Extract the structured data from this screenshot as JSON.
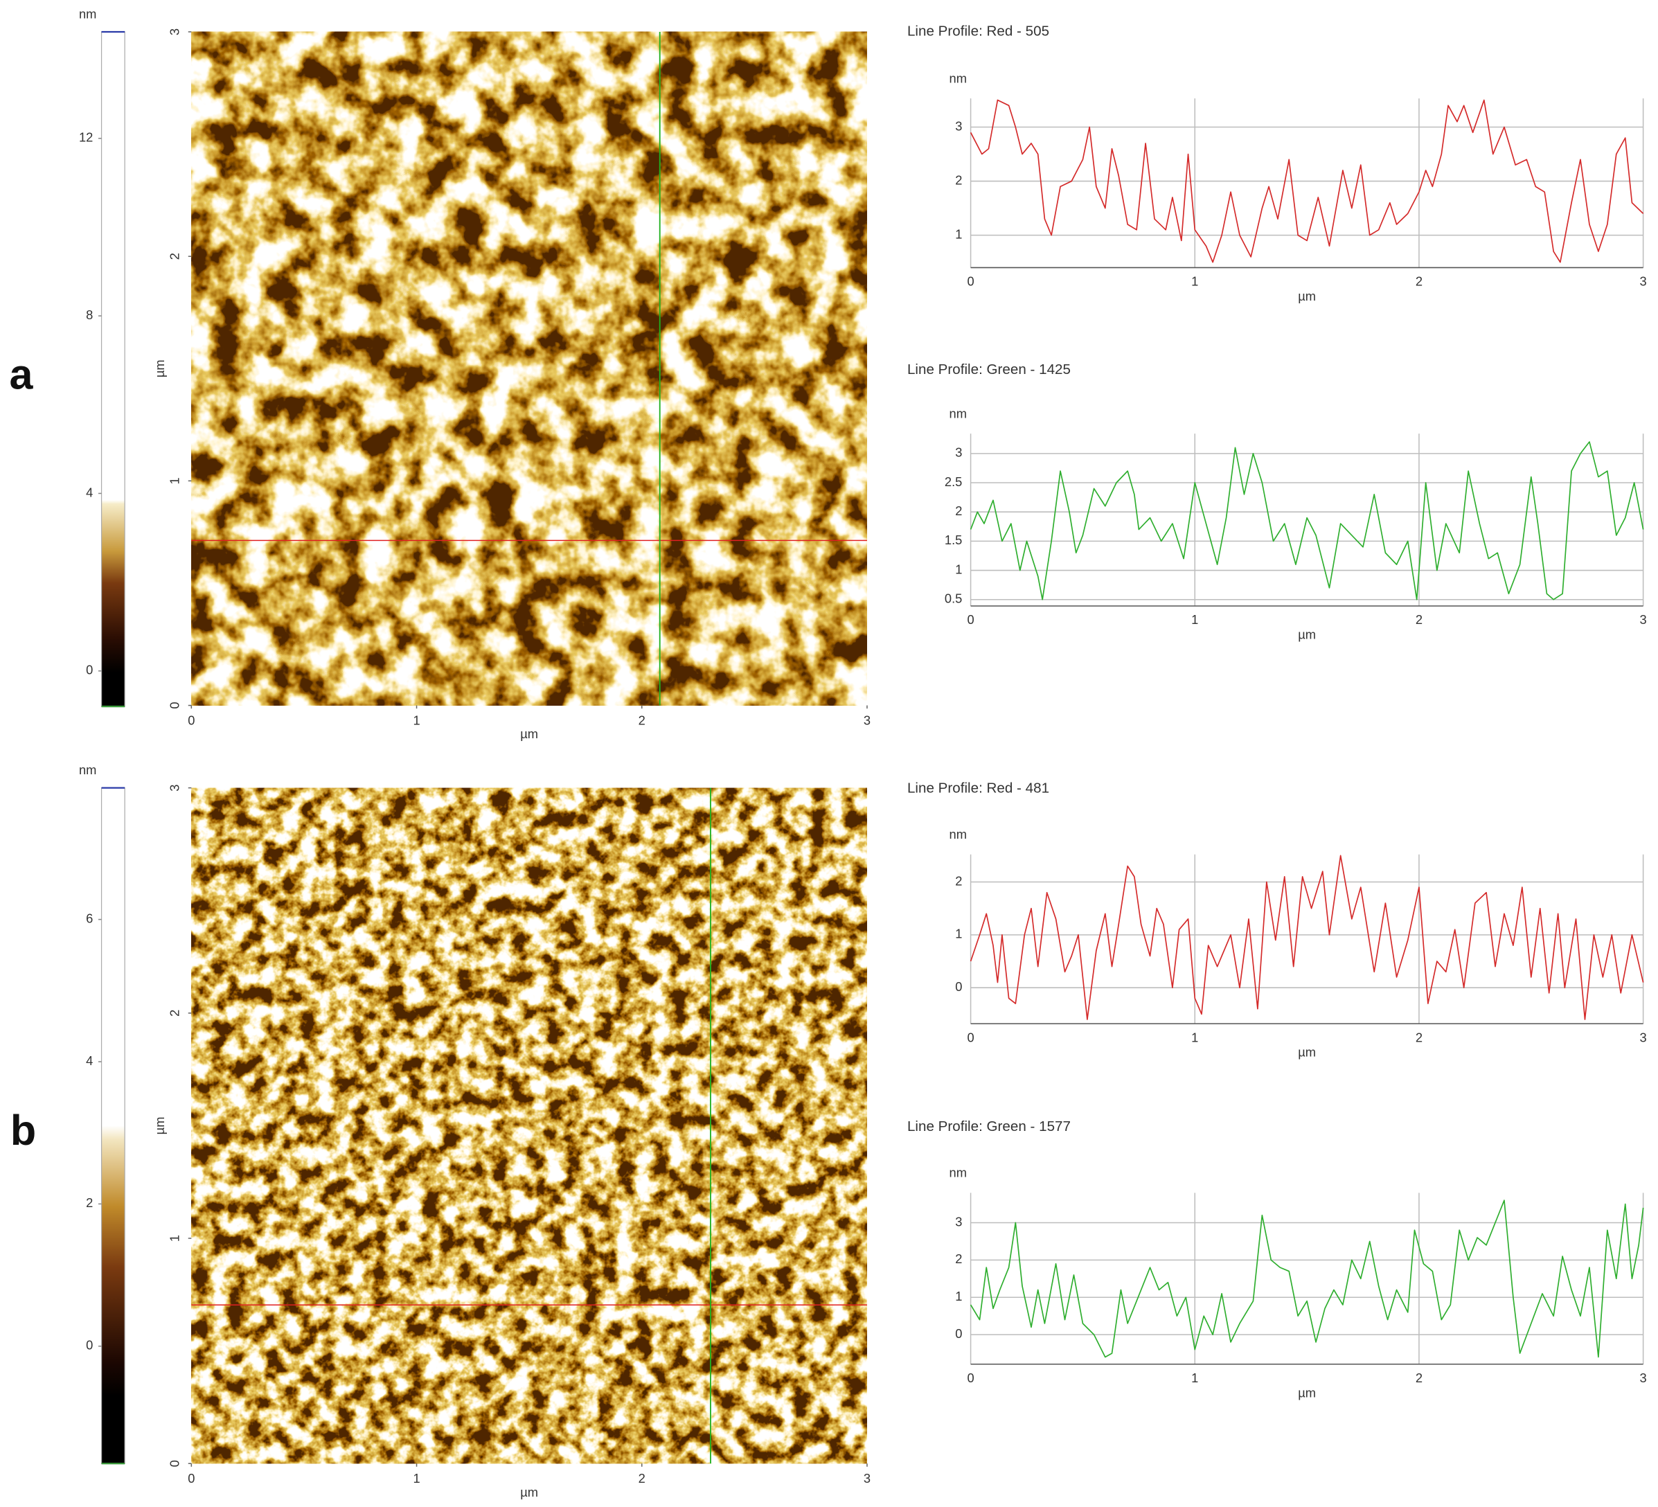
{
  "chart_data": [
    {
      "type": "colorbar",
      "unit_label": "nm",
      "ylim": [
        -0.8,
        14.4
      ],
      "yticks": [
        0,
        4,
        8,
        12
      ]
    },
    {
      "type": "image",
      "panel_label": "a",
      "xlim": [
        0,
        3
      ],
      "ylim": [
        0,
        3
      ],
      "xticks": [
        0,
        1,
        2,
        3
      ],
      "yticks": [
        0,
        1,
        2,
        3
      ],
      "xlabel": "µm",
      "ylabel": "µm"
    },
    {
      "type": "line",
      "title": "Line Profile: Red  -  505",
      "color": "#d42a2a",
      "xlabel": "µm",
      "ylabel": "nm",
      "xlim": [
        0,
        3
      ],
      "ylim": [
        0.4,
        3.53
      ],
      "xticks": [
        0,
        1,
        2,
        3
      ],
      "yticks": [
        1,
        2,
        3
      ],
      "grid": true,
      "x": [
        0,
        0.05,
        0.08,
        0.12,
        0.17,
        0.2,
        0.23,
        0.27,
        0.3,
        0.33,
        0.36,
        0.4,
        0.45,
        0.5,
        0.53,
        0.56,
        0.6,
        0.63,
        0.66,
        0.7,
        0.74,
        0.78,
        0.82,
        0.87,
        0.9,
        0.94,
        0.97,
        1.0,
        1.05,
        1.08,
        1.12,
        1.16,
        1.2,
        1.25,
        1.3,
        1.33,
        1.37,
        1.42,
        1.46,
        1.5,
        1.55,
        1.6,
        1.66,
        1.7,
        1.74,
        1.78,
        1.82,
        1.87,
        1.9,
        1.95,
        2.0,
        2.03,
        2.06,
        2.1,
        2.13,
        2.17,
        2.2,
        2.24,
        2.29,
        2.33,
        2.38,
        2.43,
        2.48,
        2.52,
        2.56,
        2.6,
        2.63,
        2.68,
        2.72,
        2.76,
        2.8,
        2.84,
        2.88,
        2.92,
        2.95,
        3.0
      ],
      "values": [
        2.9,
        2.5,
        2.6,
        3.5,
        3.4,
        3.0,
        2.5,
        2.7,
        2.5,
        1.3,
        1.0,
        1.9,
        2.0,
        2.4,
        3.0,
        1.9,
        1.5,
        2.6,
        2.1,
        1.2,
        1.1,
        2.7,
        1.3,
        1.1,
        1.7,
        0.9,
        2.5,
        1.1,
        0.8,
        0.5,
        1.0,
        1.8,
        1.0,
        0.6,
        1.5,
        1.9,
        1.3,
        2.4,
        1.0,
        0.9,
        1.7,
        0.8,
        2.2,
        1.5,
        2.3,
        1.0,
        1.1,
        1.6,
        1.2,
        1.4,
        1.8,
        2.2,
        1.9,
        2.5,
        3.4,
        3.1,
        3.4,
        2.9,
        3.5,
        2.5,
        3.0,
        2.3,
        2.4,
        1.9,
        1.8,
        0.7,
        0.5,
        1.6,
        2.4,
        1.2,
        0.7,
        1.2,
        2.5,
        2.8,
        1.6,
        1.4
      ]
    },
    {
      "type": "line",
      "title": "Line Profile: Green  -  1425",
      "color": "#2eae2e",
      "xlabel": "µm",
      "ylabel": "nm",
      "xlim": [
        0,
        3
      ],
      "ylim": [
        0.39,
        3.34
      ],
      "xticks": [
        0,
        1,
        2,
        3
      ],
      "yticks": [
        0.5,
        1,
        1.5,
        2,
        2.5,
        3
      ],
      "grid": true,
      "x": [
        0,
        0.03,
        0.06,
        0.1,
        0.14,
        0.18,
        0.22,
        0.25,
        0.3,
        0.32,
        0.36,
        0.4,
        0.44,
        0.47,
        0.5,
        0.55,
        0.6,
        0.65,
        0.7,
        0.73,
        0.75,
        0.8,
        0.85,
        0.9,
        0.95,
        1.0,
        1.05,
        1.1,
        1.14,
        1.18,
        1.22,
        1.26,
        1.3,
        1.35,
        1.4,
        1.45,
        1.5,
        1.54,
        1.6,
        1.65,
        1.7,
        1.75,
        1.8,
        1.85,
        1.9,
        1.95,
        1.99,
        2.03,
        2.08,
        2.12,
        2.18,
        2.22,
        2.27,
        2.31,
        2.35,
        2.4,
        2.45,
        2.5,
        2.53,
        2.57,
        2.6,
        2.64,
        2.68,
        2.72,
        2.76,
        2.8,
        2.84,
        2.88,
        2.92,
        2.96,
        3.0
      ],
      "values": [
        1.7,
        2.0,
        1.8,
        2.2,
        1.5,
        1.8,
        1.0,
        1.5,
        0.9,
        0.5,
        1.5,
        2.7,
        2.0,
        1.3,
        1.6,
        2.4,
        2.1,
        2.5,
        2.7,
        2.3,
        1.7,
        1.9,
        1.5,
        1.8,
        1.2,
        2.5,
        1.8,
        1.1,
        1.9,
        3.1,
        2.3,
        3.0,
        2.5,
        1.5,
        1.8,
        1.1,
        1.9,
        1.6,
        0.7,
        1.8,
        1.6,
        1.4,
        2.3,
        1.3,
        1.1,
        1.5,
        0.5,
        2.5,
        1.0,
        1.8,
        1.3,
        2.7,
        1.8,
        1.2,
        1.3,
        0.6,
        1.1,
        2.6,
        1.8,
        0.6,
        0.5,
        0.6,
        2.7,
        3.0,
        3.2,
        2.6,
        2.7,
        1.6,
        1.9,
        2.5,
        1.7
      ]
    },
    {
      "type": "colorbar",
      "unit_label": "nm",
      "ylim": [
        -1.65,
        7.85
      ],
      "yticks": [
        0,
        2,
        4,
        6
      ]
    },
    {
      "type": "image",
      "panel_label": "b",
      "xlim": [
        0,
        3
      ],
      "ylim": [
        0,
        3
      ],
      "xticks": [
        0,
        1,
        2,
        3
      ],
      "yticks": [
        0,
        1,
        2,
        3
      ],
      "xlabel": "µm",
      "ylabel": "µm"
    },
    {
      "type": "line",
      "title": "Line Profile: Red  -  481",
      "color": "#d42a2a",
      "xlabel": "µm",
      "ylabel": "nm",
      "xlim": [
        0,
        3
      ],
      "ylim": [
        -0.68,
        2.52
      ],
      "xticks": [
        0,
        1,
        2,
        3
      ],
      "yticks": [
        0,
        1,
        2
      ],
      "grid": true,
      "x": [
        0,
        0.04,
        0.07,
        0.1,
        0.12,
        0.14,
        0.17,
        0.2,
        0.24,
        0.27,
        0.3,
        0.34,
        0.38,
        0.42,
        0.45,
        0.48,
        0.52,
        0.56,
        0.6,
        0.63,
        0.66,
        0.7,
        0.73,
        0.76,
        0.8,
        0.83,
        0.86,
        0.9,
        0.93,
        0.97,
        1.0,
        1.03,
        1.06,
        1.1,
        1.13,
        1.16,
        1.2,
        1.24,
        1.28,
        1.32,
        1.36,
        1.4,
        1.44,
        1.48,
        1.52,
        1.57,
        1.6,
        1.65,
        1.7,
        1.74,
        1.8,
        1.85,
        1.9,
        1.95,
        2.0,
        2.04,
        2.08,
        2.12,
        2.16,
        2.2,
        2.25,
        2.3,
        2.34,
        2.38,
        2.42,
        2.46,
        2.5,
        2.54,
        2.58,
        2.62,
        2.65,
        2.7,
        2.74,
        2.78,
        2.82,
        2.86,
        2.9,
        2.95,
        3.0
      ],
      "values": [
        0.5,
        1.0,
        1.4,
        0.8,
        0.1,
        1.0,
        -0.2,
        -0.3,
        1.0,
        1.5,
        0.4,
        1.8,
        1.3,
        0.3,
        0.6,
        1.0,
        -0.6,
        0.7,
        1.4,
        0.4,
        1.2,
        2.3,
        2.1,
        1.2,
        0.6,
        1.5,
        1.2,
        0.0,
        1.1,
        1.3,
        -0.2,
        -0.5,
        0.8,
        0.4,
        0.7,
        1.0,
        0.0,
        1.3,
        -0.4,
        2.0,
        0.9,
        2.1,
        0.4,
        2.1,
        1.5,
        2.2,
        1.0,
        2.5,
        1.3,
        1.9,
        0.3,
        1.6,
        0.2,
        0.9,
        1.9,
        -0.3,
        0.5,
        0.3,
        1.1,
        0.0,
        1.6,
        1.8,
        0.4,
        1.4,
        0.8,
        1.9,
        0.2,
        1.5,
        -0.1,
        1.4,
        0.0,
        1.3,
        -0.6,
        1.0,
        0.2,
        1.0,
        -0.1,
        1.0,
        0.1
      ]
    },
    {
      "type": "line",
      "title": "Line Profile: Green  -  1577",
      "color": "#2eae2e",
      "xlabel": "µm",
      "ylabel": "nm",
      "xlim": [
        0,
        3
      ],
      "ylim": [
        -0.79,
        3.8
      ],
      "xticks": [
        0,
        1,
        2,
        3
      ],
      "yticks": [
        0,
        1,
        2,
        3
      ],
      "grid": true,
      "x": [
        0,
        0.04,
        0.07,
        0.1,
        0.13,
        0.17,
        0.2,
        0.23,
        0.27,
        0.3,
        0.33,
        0.38,
        0.42,
        0.46,
        0.5,
        0.55,
        0.6,
        0.63,
        0.67,
        0.7,
        0.74,
        0.8,
        0.84,
        0.88,
        0.92,
        0.96,
        1.0,
        1.04,
        1.08,
        1.12,
        1.16,
        1.2,
        1.26,
        1.3,
        1.34,
        1.38,
        1.42,
        1.46,
        1.5,
        1.54,
        1.58,
        1.62,
        1.66,
        1.7,
        1.74,
        1.78,
        1.82,
        1.86,
        1.9,
        1.95,
        1.98,
        2.02,
        2.06,
        2.1,
        2.14,
        2.18,
        2.22,
        2.26,
        2.3,
        2.34,
        2.38,
        2.42,
        2.45,
        2.5,
        2.55,
        2.6,
        2.64,
        2.68,
        2.72,
        2.76,
        2.8,
        2.84,
        2.88,
        2.92,
        2.95,
        2.98,
        3.0
      ],
      "values": [
        0.8,
        0.4,
        1.8,
        0.7,
        1.2,
        1.8,
        3.0,
        1.3,
        0.2,
        1.2,
        0.3,
        1.9,
        0.4,
        1.6,
        0.3,
        0.0,
        -0.6,
        -0.5,
        1.2,
        0.3,
        0.9,
        1.8,
        1.2,
        1.4,
        0.5,
        1.0,
        -0.4,
        0.5,
        0.0,
        1.1,
        -0.2,
        0.3,
        0.9,
        3.2,
        2.0,
        1.8,
        1.7,
        0.5,
        0.9,
        -0.2,
        0.7,
        1.2,
        0.8,
        2.0,
        1.5,
        2.5,
        1.3,
        0.4,
        1.2,
        0.6,
        2.8,
        1.9,
        1.7,
        0.4,
        0.8,
        2.8,
        2.0,
        2.6,
        2.4,
        3.0,
        3.6,
        1.0,
        -0.5,
        0.3,
        1.1,
        0.5,
        2.1,
        1.2,
        0.5,
        1.8,
        -0.6,
        2.8,
        1.5,
        3.5,
        1.5,
        2.4,
        3.4
      ]
    }
  ]
}
